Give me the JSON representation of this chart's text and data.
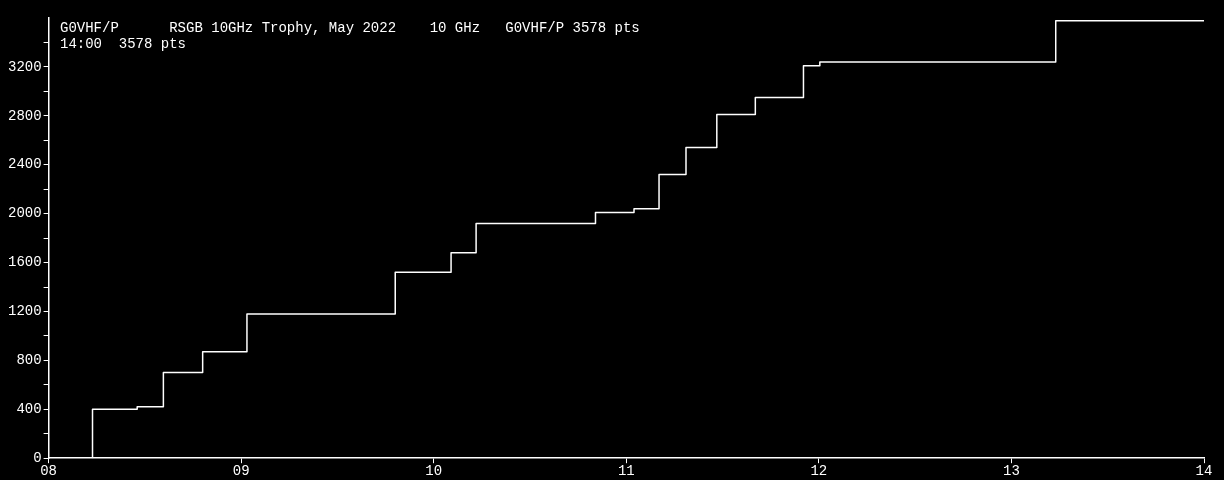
{
  "chart_data": {
    "type": "step",
    "title": "G0VHF/P      RSGB 10GHz Trophy, May 2022    10 GHz   G0VHF/P 3578 pts",
    "subtitle": "14:00  3578 pts",
    "series": [
      {
        "color": "#ffffff",
        "x": [
          8.228,
          8.228,
          8.46,
          8.596,
          8.8,
          9.03,
          9.8,
          10.09,
          10.22,
          10.84,
          11.04,
          11.17,
          11.31,
          11.47,
          11.67,
          11.92,
          12.005,
          13.23,
          14
        ],
        "values": [
          0,
          400,
          420,
          700,
          870,
          1180,
          1520,
          1680,
          1920,
          2010,
          2040,
          2320,
          2540,
          2810,
          2950,
          3210,
          3240,
          3578,
          3578
        ]
      }
    ],
    "xlim": [
      8,
      14
    ],
    "xticks": [
      {
        "value": 8,
        "label": "08"
      },
      {
        "value": 9,
        "label": "09"
      },
      10,
      11,
      12,
      13,
      14
    ],
    "ylim": [
      0,
      3600
    ],
    "yticks": [
      0,
      {
        "value": 200,
        "label": null
      },
      400,
      {
        "value": 600,
        "label": null
      },
      800,
      {
        "value": 1000,
        "label": null
      },
      1200,
      {
        "value": 1400,
        "label": null
      },
      1600,
      {
        "value": 1800,
        "label": null
      },
      2000,
      {
        "value": 2200,
        "label": null
      },
      2400,
      {
        "value": 2600,
        "label": null
      },
      2800,
      {
        "value": 3000,
        "label": null
      },
      3200,
      {
        "value": 3400,
        "label": null
      }
    ],
    "grid": false,
    "legend": false,
    "marker": "none",
    "line_style": "solid"
  }
}
